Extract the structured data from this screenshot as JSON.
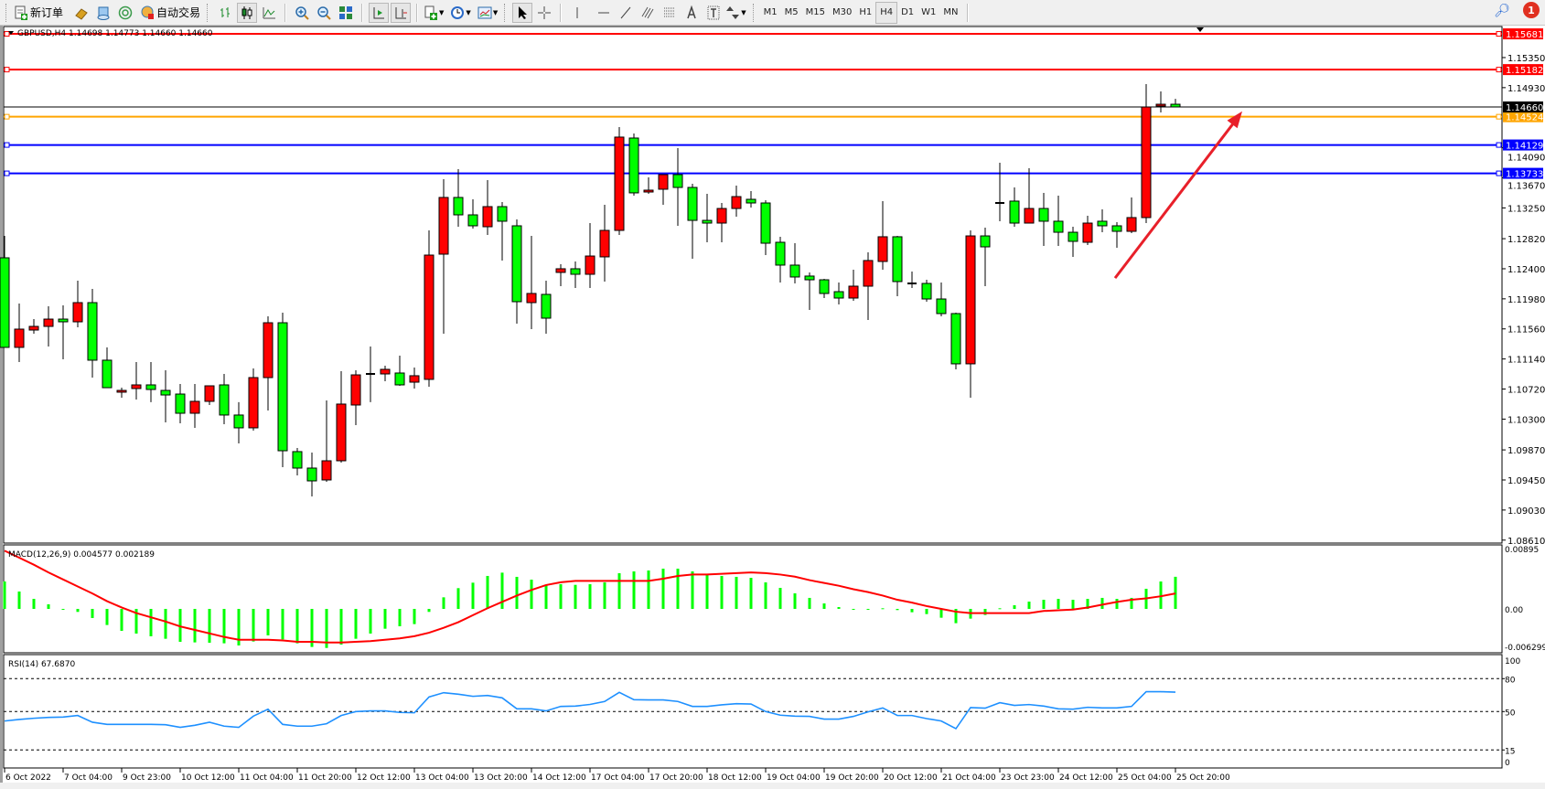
{
  "toolbar": {
    "new_order_label": "新订单",
    "autotrade_label": "自动交易",
    "icons": [
      "new-order-icon",
      "market-watch-icon",
      "data-window-icon",
      "navigator-icon",
      "autotrading-icon",
      "bar-chart-icon",
      "candlestick-icon",
      "line-chart-icon",
      "zoom-in-icon",
      "zoom-out-icon",
      "tile-windows-icon",
      "auto-scroll-icon",
      "chart-shift-icon",
      "indicators-icon",
      "periods-icon",
      "templates-icon",
      "cursor-icon",
      "crosshair-icon",
      "vertical-line-icon",
      "horizontal-line-icon",
      "trendline-icon",
      "fibonacci-channel-icon",
      "fibonacci-icon",
      "text-icon",
      "text-label-icon",
      "arrows-icon",
      "search-icon",
      "notification-icon"
    ],
    "timeframes": [
      "M1",
      "M5",
      "M15",
      "M30",
      "H1",
      "H4",
      "D1",
      "W1",
      "MN"
    ],
    "active_timeframe": "H4",
    "notification_count": "1"
  },
  "chart_data": {
    "type": "candlestick",
    "symbol": "GBPUSD,H4",
    "ohlc_text": "1.14698 1.14773 1.14660 1.14660",
    "up_color": "#ff0000",
    "down_color": "#00ff00",
    "price_axis_labels": [
      "1.15350",
      "1.14930",
      "1.14090",
      "1.13670",
      "1.13250",
      "1.12820",
      "1.12400",
      "1.11980",
      "1.11560",
      "1.11140",
      "1.10720",
      "1.10300",
      "1.09870",
      "1.09450",
      "1.09030",
      "1.08610"
    ],
    "horizontal_lines": [
      {
        "price": "1.15681",
        "color": "#ff0000"
      },
      {
        "price": "1.15182",
        "color": "#ff0000"
      },
      {
        "price": "1.14524",
        "color": "#ffa500"
      },
      {
        "price": "1.14129",
        "color": "#0000ff"
      },
      {
        "price": "1.13733",
        "color": "#0000ff"
      }
    ],
    "current_price": "1.14660",
    "arrow": {
      "color": "#e8202a",
      "from_price": 1.1227,
      "to_price": 1.146,
      "from_bar": 76,
      "to_bar": 84.5
    },
    "time_labels": [
      "6 Oct 2022",
      "7 Oct 04:00",
      "9 Oct 23:00",
      "10 Oct 12:00",
      "11 Oct 04:00",
      "11 Oct 20:00",
      "12 Oct 12:00",
      "13 Oct 04:00",
      "13 Oct 20:00",
      "14 Oct 12:00",
      "17 Oct 04:00",
      "17 Oct 20:00",
      "18 Oct 12:00",
      "19 Oct 04:00",
      "19 Oct 20:00",
      "20 Oct 12:00",
      "21 Oct 04:00",
      "23 Oct 23:00",
      "24 Oct 12:00",
      "25 Oct 04:00",
      "25 Oct 20:00"
    ],
    "time_label_every_bars": 4,
    "candles_ohlc": [
      [
        1.12553,
        1.12859,
        1.11302,
        1.11302
      ],
      [
        1.11302,
        1.11914,
        1.11097,
        1.11557
      ],
      [
        1.11544,
        1.11697,
        1.11493,
        1.11595
      ],
      [
        1.11595,
        1.11876,
        1.11314,
        1.11697
      ],
      [
        1.11697,
        1.11889,
        1.11136,
        1.11659
      ],
      [
        1.11659,
        1.12234,
        1.11582,
        1.11927
      ],
      [
        1.11927,
        1.12119,
        1.1088,
        1.11123
      ],
      [
        1.11123,
        1.11302,
        1.10739,
        1.10739
      ],
      [
        1.10676,
        1.10739,
        1.10599,
        1.10701
      ],
      [
        1.10727,
        1.11097,
        1.10574,
        1.10778
      ],
      [
        1.10778,
        1.11097,
        1.10536,
        1.10714
      ],
      [
        1.10701,
        1.10982,
        1.10254,
        1.10637
      ],
      [
        1.1065,
        1.10791,
        1.10242,
        1.10382
      ],
      [
        1.10382,
        1.10791,
        1.10178,
        1.10548
      ],
      [
        1.10548,
        1.10765,
        1.10497,
        1.10765
      ],
      [
        1.10778,
        1.10931,
        1.10229,
        1.10357
      ],
      [
        1.10357,
        1.10536,
        1.09961,
        1.10178
      ],
      [
        1.10178,
        1.11008,
        1.10139,
        1.1088
      ],
      [
        1.1088,
        1.11736,
        1.10421,
        1.11646
      ],
      [
        1.11646,
        1.11787,
        1.09629,
        1.09858
      ],
      [
        1.09846,
        1.09897,
        1.09514,
        1.09616
      ],
      [
        1.09616,
        1.09833,
        1.0922,
        1.09437
      ],
      [
        1.0945,
        1.10561,
        1.09424,
        1.09718
      ],
      [
        1.09718,
        1.1097,
        1.09693,
        1.1051
      ],
      [
        1.10497,
        1.10982,
        1.10216,
        1.10918
      ],
      [
        1.10918,
        1.11314,
        1.10536,
        1.10931
      ],
      [
        1.10931,
        1.11046,
        1.10829,
        1.10995
      ],
      [
        1.10944,
        1.11187,
        1.10765,
        1.10778
      ],
      [
        1.10816,
        1.1102,
        1.10727,
        1.10906
      ],
      [
        1.10855,
        1.12936,
        1.10752,
        1.12591
      ],
      [
        1.12604,
        1.13651,
        1.11493,
        1.13396
      ],
      [
        1.13396,
        1.13792,
        1.12987,
        1.13153
      ],
      [
        1.13153,
        1.1337,
        1.12961,
        1.13
      ],
      [
        1.12987,
        1.13638,
        1.12872,
        1.13268
      ],
      [
        1.13268,
        1.13332,
        1.12515,
        1.13064
      ],
      [
        1.13,
        1.13089,
        1.11634,
        1.1194
      ],
      [
        1.11927,
        1.12859,
        1.11557,
        1.12055
      ],
      [
        1.12042,
        1.12234,
        1.11493,
        1.1171
      ],
      [
        1.12349,
        1.12464,
        1.12157,
        1.124
      ],
      [
        1.124,
        1.12502,
        1.12131,
        1.12323
      ],
      [
        1.12323,
        1.13038,
        1.12131,
        1.12578
      ],
      [
        1.12566,
        1.13294,
        1.12221,
        1.12936
      ],
      [
        1.12936,
        1.14379,
        1.12872,
        1.14239
      ],
      [
        1.14226,
        1.1429,
        1.13421,
        1.1346
      ],
      [
        1.13472,
        1.13677,
        1.13447,
        1.13498
      ],
      [
        1.13511,
        1.13715,
        1.13294,
        1.13715
      ],
      [
        1.13715,
        1.14085,
        1.13,
        1.13536
      ],
      [
        1.13536,
        1.13587,
        1.1254,
        1.13076
      ],
      [
        1.13076,
        1.13447,
        1.1277,
        1.13038
      ],
      [
        1.13038,
        1.13319,
        1.1277,
        1.13242
      ],
      [
        1.13242,
        1.13562,
        1.13128,
        1.13408
      ],
      [
        1.1337,
        1.13485,
        1.13255,
        1.13319
      ],
      [
        1.13319,
        1.13357,
        1.12591,
        1.12757
      ],
      [
        1.1277,
        1.12847,
        1.12208,
        1.12451
      ],
      [
        1.12451,
        1.12757,
        1.12195,
        1.12285
      ],
      [
        1.12298,
        1.12349,
        1.11825,
        1.12246
      ],
      [
        1.12246,
        1.12259,
        1.11991,
        1.12055
      ],
      [
        1.1208,
        1.12208,
        1.11902,
        1.11991
      ],
      [
        1.11991,
        1.12387,
        1.11953,
        1.12157
      ],
      [
        1.12157,
        1.1263,
        1.11684,
        1.12515
      ],
      [
        1.12502,
        1.13345,
        1.12387,
        1.12847
      ],
      [
        1.12847,
        1.12859,
        1.12017,
        1.12221
      ],
      [
        1.12195,
        1.12361,
        1.12131,
        1.12195
      ],
      [
        1.12195,
        1.12246,
        1.1194,
        1.11978
      ],
      [
        1.11978,
        1.12208,
        1.11736,
        1.11774
      ],
      [
        1.11774,
        1.11787,
        1.10995,
        1.11072
      ],
      [
        1.11072,
        1.12936,
        1.10599,
        1.12859
      ],
      [
        1.12859,
        1.12974,
        1.12157,
        1.12706
      ],
      [
        1.13319,
        1.13881,
        1.13064,
        1.13319
      ],
      [
        1.13345,
        1.13536,
        1.12987,
        1.13038
      ],
      [
        1.13038,
        1.13804,
        1.13038,
        1.13242
      ],
      [
        1.13242,
        1.1346,
        1.12719,
        1.13064
      ],
      [
        1.13064,
        1.13421,
        1.12719,
        1.1291
      ],
      [
        1.1291,
        1.12987,
        1.12566,
        1.12783
      ],
      [
        1.1277,
        1.1314,
        1.12732,
        1.13038
      ],
      [
        1.13064,
        1.1323,
        1.1291,
        1.13
      ],
      [
        1.13,
        1.13051,
        1.12693,
        1.12923
      ],
      [
        1.12923,
        1.13396,
        1.12898,
        1.13115
      ],
      [
        1.13115,
        1.14979,
        1.13038,
        1.1466
      ],
      [
        1.14673,
        1.14877,
        1.14583,
        1.14698
      ],
      [
        1.14698,
        1.14773,
        1.1466,
        1.1466
      ]
    ],
    "macd": {
      "label": "MACD(12,26,9) 0.004577 0.002189",
      "axis_labels": [
        "0.00895",
        "0.00",
        "-0.006299"
      ],
      "range": [
        -0.006299,
        0.00895
      ],
      "histogram_color": "#00ff00",
      "signal_color": "#ff0000",
      "histogram": [
        0.00391,
        0.00248,
        0.00143,
        0.00065,
        -4e-05,
        -0.00043,
        -0.0013,
        -0.0023,
        -0.00313,
        -0.00352,
        -0.00391,
        -0.00426,
        -0.0047,
        -0.00478,
        -0.00483,
        -0.00491,
        -0.00522,
        -0.00465,
        -0.00378,
        -0.00435,
        -0.00491,
        -0.00543,
        -0.00557,
        -0.00509,
        -0.00426,
        -0.00352,
        -0.00283,
        -0.00248,
        -0.00217,
        -0.00043,
        0.00165,
        0.00296,
        0.00374,
        0.0047,
        0.00517,
        0.00457,
        0.00417,
        0.00343,
        0.00352,
        0.00343,
        0.00352,
        0.00378,
        0.00509,
        0.00535,
        0.00548,
        0.00574,
        0.00574,
        0.00535,
        0.00491,
        0.0047,
        0.00457,
        0.00443,
        0.00378,
        0.003,
        0.00222,
        0.00157,
        0.00078,
        0.00026,
        -0.00013,
        -0.00013,
        9e-05,
        -0.00017,
        -0.00048,
        -0.00074,
        -0.00126,
        -0.00204,
        -0.00139,
        -0.00087,
        9e-05,
        0.00052,
        0.00104,
        0.0013,
        0.00143,
        0.0013,
        0.00143,
        0.00157,
        0.00143,
        0.00157,
        0.00287,
        0.00391,
        0.00458
      ],
      "signal": [
        0.0083,
        0.0073,
        0.0063,
        0.0052,
        0.0042,
        0.0032,
        0.0022,
        0.0011,
        0.0002,
        -0.0006,
        -0.0012,
        -0.0018,
        -0.0025,
        -0.003,
        -0.0035,
        -0.004,
        -0.0044,
        -0.0044,
        -0.0044,
        -0.0045,
        -0.0047,
        -0.0047,
        -0.0048,
        -0.0048,
        -0.0047,
        -0.0046,
        -0.0044,
        -0.0042,
        -0.0039,
        -0.0034,
        -0.0027,
        -0.0019,
        -0.0009,
        0.0001,
        0.001,
        0.0019,
        0.0027,
        0.0034,
        0.0038,
        0.004,
        0.004,
        0.004,
        0.004,
        0.004,
        0.004,
        0.0043,
        0.0047,
        0.0049,
        0.0049,
        0.005,
        0.0051,
        0.0052,
        0.0051,
        0.0049,
        0.0046,
        0.0041,
        0.0037,
        0.0033,
        0.0028,
        0.0024,
        0.0019,
        0.0013,
        0.0009,
        0.0004,
        0.0,
        -0.0004,
        -0.0006,
        -0.0006,
        -0.0006,
        -0.0006,
        -0.0006,
        -0.0003,
        -0.0002,
        -0.0001,
        0.0002,
        0.0006,
        0.001,
        0.0013,
        0.0015,
        0.0018,
        0.0022
      ]
    },
    "rsi": {
      "label": "RSI(14) 67.6870",
      "axis_labels": [
        "100",
        "80",
        "50",
        "15",
        "0"
      ],
      "levels": [
        80,
        50,
        15
      ],
      "range": [
        0,
        100
      ],
      "color": "#1e90ff",
      "values": [
        41.4,
        42.8,
        43.9,
        44.7,
        45,
        46.4,
        40.3,
        38.3,
        38.3,
        38.3,
        38.3,
        38,
        35.6,
        37.5,
        40.3,
        36.7,
        35.6,
        45.8,
        52.2,
        38.3,
        36.7,
        36.7,
        38.9,
        46.4,
        50,
        50.6,
        50.6,
        49.2,
        48.9,
        63.3,
        67.2,
        65.8,
        63.9,
        64.7,
        62.5,
        52.5,
        52.5,
        50.6,
        54.7,
        55,
        56.5,
        59.2,
        67.5,
        60.8,
        60.6,
        60.6,
        59.2,
        54.7,
        54.7,
        56.1,
        57.2,
        56.9,
        50,
        46.7,
        45.8,
        45.6,
        43.1,
        43.1,
        45.6,
        49.7,
        53.3,
        46.4,
        46.4,
        43.6,
        41.4,
        34.4,
        53.6,
        53.1,
        58.1,
        55.6,
        56.4,
        55,
        52.5,
        52.2,
        53.9,
        53.3,
        53.3,
        54.7,
        68.1,
        68.1,
        67.7
      ]
    }
  }
}
